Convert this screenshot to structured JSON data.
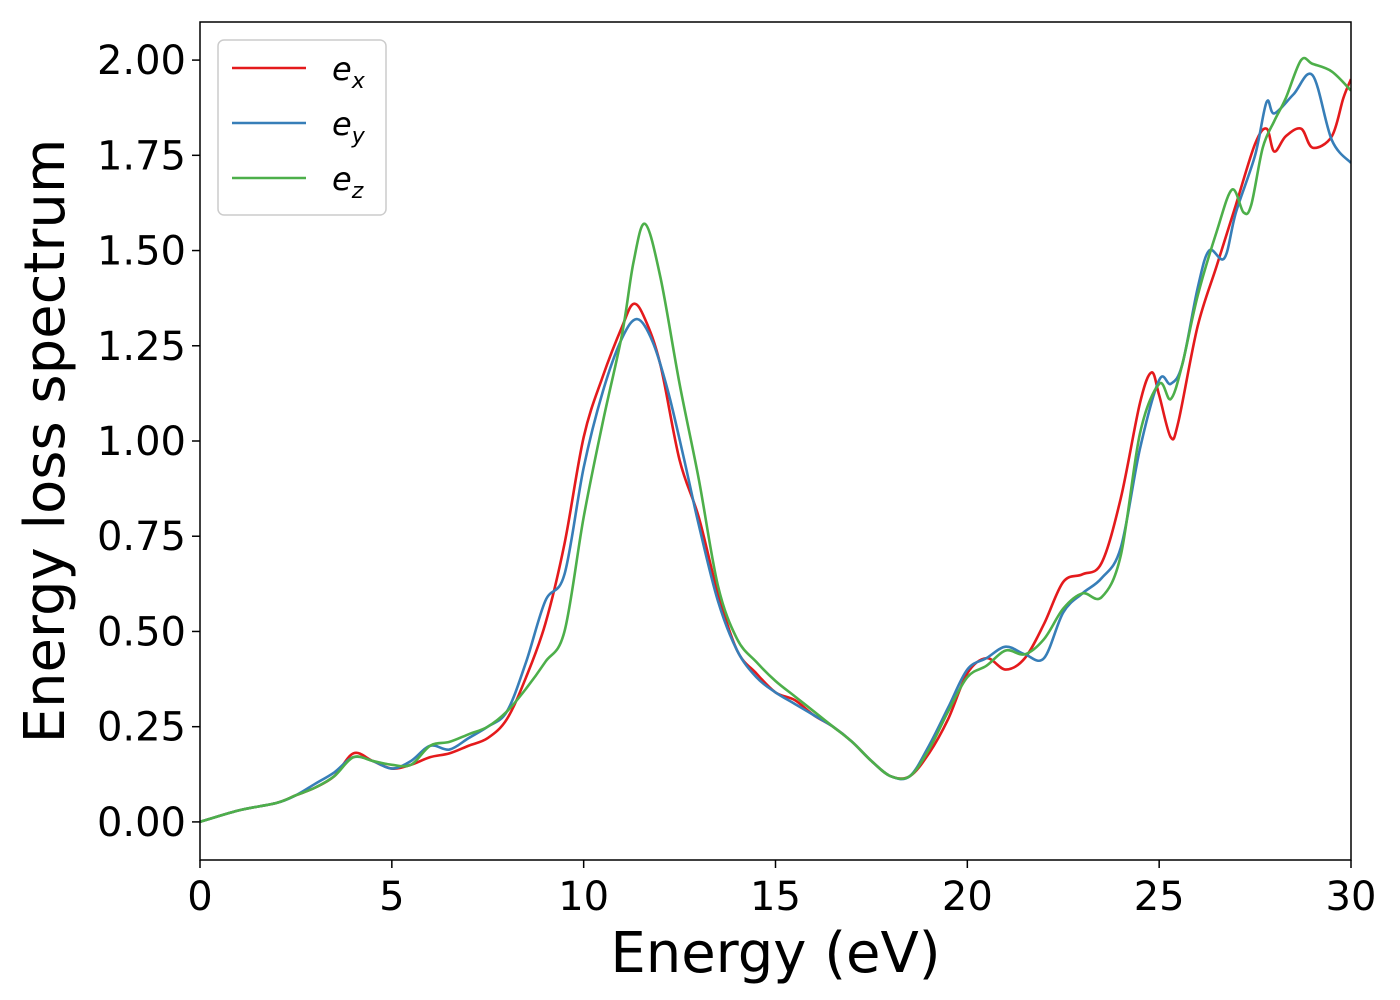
{
  "chart_data": {
    "type": "line",
    "title": "",
    "xlabel": "Energy (eV)",
    "ylabel": "Energy loss spectrum",
    "xlim": [
      0,
      30
    ],
    "ylim": [
      -0.1,
      2.1
    ],
    "xticks": [
      0,
      5,
      10,
      15,
      20,
      25,
      30
    ],
    "xtick_labels": [
      "0",
      "5",
      "10",
      "15",
      "20",
      "25",
      "30"
    ],
    "yticks": [
      0.0,
      0.25,
      0.5,
      0.75,
      1.0,
      1.25,
      1.5,
      1.75,
      2.0
    ],
    "ytick_labels": [
      "0.00",
      "0.25",
      "0.50",
      "0.75",
      "1.00",
      "1.25",
      "1.50",
      "1.75",
      "2.00"
    ],
    "grid": false,
    "legend_position": "top-left",
    "series": [
      {
        "name": "e",
        "subscript": "x",
        "color": "#e41a1c",
        "x": [
          0,
          1,
          2,
          2.5,
          3,
          3.5,
          4,
          4.5,
          5,
          5.5,
          6,
          6.5,
          7,
          7.5,
          8,
          8.5,
          9,
          9.5,
          10,
          10.5,
          11,
          11.3,
          11.6,
          12,
          12.5,
          13,
          13.5,
          14,
          14.5,
          15,
          15.5,
          16,
          16.5,
          17,
          17.5,
          18,
          18.5,
          19,
          19.5,
          20,
          20.5,
          21,
          21.5,
          22,
          22.5,
          23,
          23.5,
          24,
          24.5,
          24.8,
          25,
          25.3,
          25.5,
          26,
          26.5,
          27,
          27.5,
          27.8,
          28,
          28.3,
          28.7,
          29,
          29.5,
          29.8,
          30
        ],
        "y": [
          0.0,
          0.03,
          0.05,
          0.07,
          0.09,
          0.12,
          0.18,
          0.16,
          0.14,
          0.15,
          0.17,
          0.18,
          0.2,
          0.22,
          0.27,
          0.38,
          0.52,
          0.73,
          1.01,
          1.17,
          1.3,
          1.36,
          1.32,
          1.2,
          0.95,
          0.8,
          0.6,
          0.45,
          0.39,
          0.34,
          0.32,
          0.28,
          0.25,
          0.21,
          0.16,
          0.12,
          0.12,
          0.18,
          0.27,
          0.39,
          0.43,
          0.4,
          0.43,
          0.52,
          0.63,
          0.65,
          0.68,
          0.85,
          1.1,
          1.18,
          1.12,
          1.01,
          1.05,
          1.3,
          1.46,
          1.62,
          1.78,
          1.82,
          1.76,
          1.8,
          1.82,
          1.77,
          1.8,
          1.9,
          1.95
        ]
      },
      {
        "name": "e",
        "subscript": "y",
        "color": "#377eb8",
        "x": [
          0,
          1,
          2,
          2.5,
          3,
          3.5,
          4,
          4.5,
          5,
          5.5,
          6,
          6.5,
          7,
          7.5,
          8,
          8.5,
          9,
          9.5,
          10,
          10.5,
          11,
          11.4,
          11.8,
          12.2,
          12.6,
          13,
          13.5,
          14,
          14.5,
          15,
          15.5,
          16,
          16.5,
          17,
          17.5,
          18,
          18.5,
          19,
          19.5,
          20,
          20.5,
          21,
          21.5,
          22,
          22.5,
          23,
          23.5,
          24,
          24.5,
          25,
          25.3,
          25.6,
          26,
          26.3,
          26.7,
          27,
          27.5,
          27.8,
          28,
          28.5,
          29,
          29.5,
          30
        ],
        "y": [
          0.0,
          0.03,
          0.05,
          0.07,
          0.1,
          0.13,
          0.17,
          0.16,
          0.14,
          0.16,
          0.2,
          0.19,
          0.22,
          0.25,
          0.29,
          0.42,
          0.58,
          0.65,
          0.93,
          1.13,
          1.27,
          1.32,
          1.26,
          1.13,
          0.96,
          0.78,
          0.58,
          0.45,
          0.38,
          0.34,
          0.31,
          0.28,
          0.25,
          0.21,
          0.16,
          0.12,
          0.12,
          0.2,
          0.3,
          0.4,
          0.43,
          0.46,
          0.44,
          0.43,
          0.55,
          0.6,
          0.64,
          0.72,
          0.98,
          1.16,
          1.15,
          1.2,
          1.4,
          1.5,
          1.48,
          1.6,
          1.75,
          1.89,
          1.86,
          1.91,
          1.96,
          1.79,
          1.73
        ]
      },
      {
        "name": "e",
        "subscript": "z",
        "color": "#4daf4a",
        "x": [
          0,
          1,
          2,
          2.5,
          3,
          3.5,
          4,
          4.5,
          5,
          5.5,
          6,
          6.5,
          7,
          7.5,
          8,
          8.5,
          9,
          9.5,
          10,
          10.5,
          11,
          11.3,
          11.6,
          12,
          12.5,
          13,
          13.5,
          14,
          14.5,
          15,
          15.5,
          16,
          16.5,
          17,
          17.5,
          18,
          18.5,
          19,
          19.5,
          20,
          20.5,
          21,
          21.5,
          22,
          22.5,
          23,
          23.5,
          24,
          24.5,
          25,
          25.3,
          25.6,
          26,
          26.5,
          26.9,
          27.2,
          27.4,
          27.7,
          28,
          28.3,
          28.7,
          29,
          29.5,
          30
        ],
        "y": [
          0.0,
          0.03,
          0.05,
          0.07,
          0.09,
          0.12,
          0.17,
          0.16,
          0.15,
          0.15,
          0.2,
          0.21,
          0.23,
          0.25,
          0.29,
          0.35,
          0.42,
          0.5,
          0.8,
          1.05,
          1.28,
          1.47,
          1.57,
          1.43,
          1.15,
          0.9,
          0.62,
          0.48,
          0.42,
          0.37,
          0.33,
          0.29,
          0.25,
          0.21,
          0.16,
          0.12,
          0.12,
          0.19,
          0.29,
          0.38,
          0.41,
          0.45,
          0.44,
          0.48,
          0.56,
          0.6,
          0.59,
          0.7,
          1.02,
          1.15,
          1.11,
          1.2,
          1.38,
          1.55,
          1.66,
          1.6,
          1.62,
          1.77,
          1.84,
          1.9,
          2.0,
          1.99,
          1.97,
          1.92
        ]
      }
    ]
  }
}
